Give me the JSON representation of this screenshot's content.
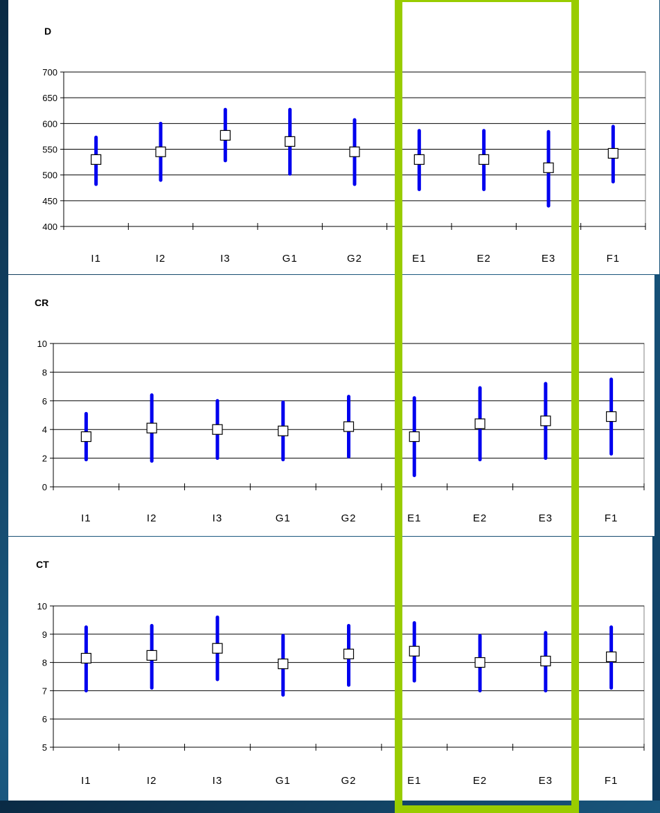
{
  "highlight_color": "#99cc00",
  "series_color": "#0000ee",
  "chart_data": [
    {
      "type": "scatter",
      "title": "D",
      "categories": [
        "I1",
        "I2",
        "I3",
        "G1",
        "G2",
        "E1",
        "E2",
        "E3",
        "F1"
      ],
      "mean": [
        530,
        545,
        577,
        565,
        545,
        530,
        530,
        514,
        542
      ],
      "lower": [
        482,
        490,
        528,
        502,
        482,
        472,
        472,
        440,
        487
      ],
      "upper": [
        573,
        600,
        627,
        627,
        607,
        586,
        586,
        584,
        594
      ],
      "ylim": [
        400,
        700
      ],
      "yticks": [
        400,
        450,
        500,
        550,
        600,
        650,
        700
      ],
      "grid": true
    },
    {
      "type": "scatter",
      "title": "CR",
      "categories": [
        "I1",
        "I2",
        "I3",
        "G1",
        "G2",
        "E1",
        "E2",
        "E3",
        "F1"
      ],
      "mean": [
        3.5,
        4.1,
        4.0,
        3.9,
        4.2,
        3.5,
        4.4,
        4.6,
        4.9
      ],
      "lower": [
        1.9,
        1.8,
        2.0,
        1.9,
        2.1,
        0.8,
        1.9,
        2.0,
        2.3
      ],
      "upper": [
        5.1,
        6.4,
        6.0,
        5.9,
        6.3,
        6.2,
        6.9,
        7.2,
        7.5
      ],
      "ylim": [
        0,
        10
      ],
      "yticks": [
        0,
        2,
        4,
        6,
        8,
        10
      ],
      "grid": true
    },
    {
      "type": "scatter",
      "title": "CT",
      "categories": [
        "I1",
        "I2",
        "I3",
        "G1",
        "G2",
        "E1",
        "E2",
        "E3",
        "F1"
      ],
      "mean": [
        8.15,
        8.25,
        8.5,
        7.95,
        8.3,
        8.4,
        8.0,
        8.05,
        8.2
      ],
      "lower": [
        7.0,
        7.1,
        7.4,
        6.85,
        7.2,
        7.35,
        7.0,
        7.0,
        7.1
      ],
      "upper": [
        9.25,
        9.3,
        9.6,
        8.95,
        9.3,
        9.4,
        8.95,
        9.05,
        9.25
      ],
      "ylim": [
        5,
        10
      ],
      "yticks": [
        5,
        6,
        7,
        8,
        9,
        10
      ],
      "grid": true
    }
  ]
}
